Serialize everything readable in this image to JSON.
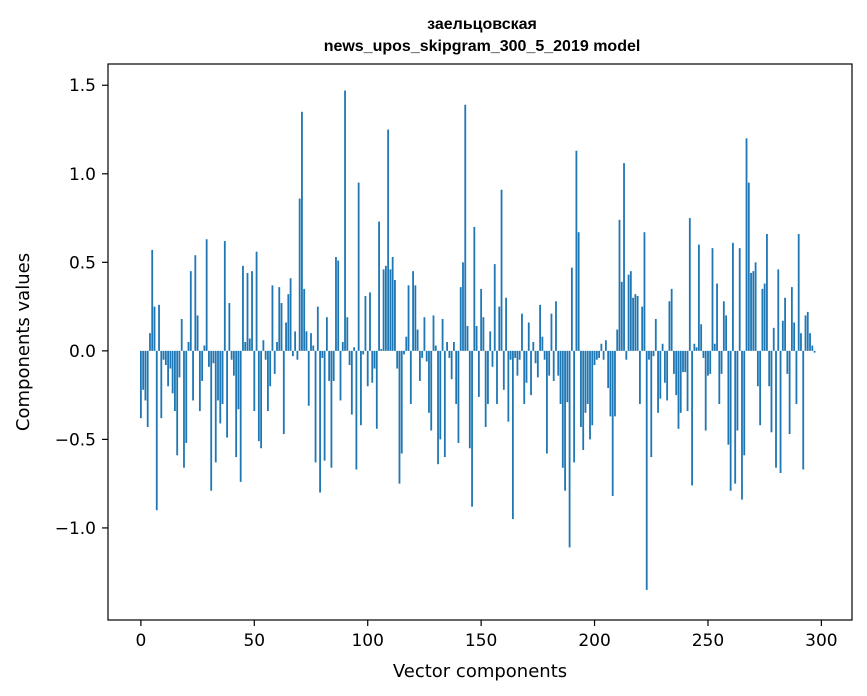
{
  "chart_data": {
    "type": "bar",
    "title_lines": [
      "заельцовская",
      "news_upos_skipgram_300_5_2019 model"
    ],
    "xlabel": "Vector components",
    "ylabel": "Components values",
    "xlim": [
      -14.5,
      313.5
    ],
    "ylim": [
      -1.52,
      1.62
    ],
    "xticks": [
      0,
      50,
      100,
      150,
      200,
      250,
      300
    ],
    "xtick_labels": [
      "0",
      "50",
      "100",
      "150",
      "200",
      "250",
      "300"
    ],
    "yticks": [
      -1.0,
      -0.5,
      0.0,
      0.5,
      1.0,
      1.5
    ],
    "ytick_labels": [
      "−1.0",
      "−0.5",
      "0.0",
      "0.5",
      "1.0",
      "1.5"
    ],
    "grid": false,
    "bar_color": "#1f77b4",
    "x_start": 0,
    "values": [
      -0.38,
      -0.22,
      -0.28,
      -0.43,
      0.1,
      0.57,
      0.25,
      -0.9,
      0.26,
      -0.38,
      -0.05,
      -0.08,
      -0.2,
      -0.1,
      -0.24,
      -0.34,
      -0.59,
      -0.15,
      0.18,
      -0.66,
      -0.52,
      0.05,
      0.45,
      -0.28,
      0.54,
      0.2,
      -0.34,
      -0.17,
      0.03,
      0.63,
      -0.09,
      -0.79,
      -0.07,
      -0.63,
      -0.28,
      -0.41,
      -0.3,
      0.62,
      -0.49,
      0.27,
      -0.05,
      -0.14,
      -0.6,
      -0.33,
      -0.74,
      0.48,
      0.05,
      0.44,
      0.07,
      0.45,
      -0.34,
      0.56,
      -0.51,
      -0.55,
      0.06,
      -0.05,
      -0.34,
      -0.2,
      0.37,
      -0.13,
      0.05,
      0.36,
      0.27,
      -0.47,
      0.16,
      0.32,
      0.41,
      -0.03,
      0.11,
      -0.05,
      0.86,
      1.35,
      0.35,
      0.11,
      -0.31,
      0.1,
      0.03,
      -0.63,
      0.25,
      -0.8,
      -0.04,
      -0.62,
      0.19,
      -0.17,
      -0.66,
      -0.17,
      0.53,
      0.51,
      -0.28,
      0.05,
      1.47,
      0.19,
      -0.08,
      -0.36,
      0.02,
      -0.67,
      0.95,
      -0.42,
      -0.02,
      0.31,
      -0.2,
      0.33,
      -0.18,
      -0.1,
      -0.44,
      0.73,
      0.01,
      0.46,
      0.48,
      1.25,
      0.46,
      0.53,
      0.4,
      -0.1,
      -0.75,
      -0.58,
      -0.02,
      0.08,
      0.37,
      -0.3,
      0.45,
      0.37,
      0.12,
      -0.17,
      -0.04,
      0.19,
      -0.06,
      -0.35,
      -0.45,
      0.2,
      0.03,
      -0.64,
      -0.5,
      0.18,
      -0.6,
      0.05,
      -0.04,
      -0.16,
      0.05,
      -0.3,
      -0.52,
      0.36,
      0.5,
      1.39,
      0.14,
      -0.55,
      -0.88,
      0.7,
      0.14,
      -0.26,
      0.35,
      0.19,
      -0.43,
      -0.3,
      0.11,
      -0.09,
      0.49,
      -0.3,
      0.25,
      0.91,
      -0.22,
      0.3,
      -0.4,
      -0.05,
      -0.95,
      -0.04,
      -0.14,
      -0.05,
      0.21,
      -0.3,
      -0.18,
      0.16,
      -0.25,
      0.05,
      -0.07,
      -0.15,
      0.26,
      0.08,
      -0.05,
      -0.58,
      -0.14,
      0.21,
      -0.17,
      0.28,
      -0.14,
      -0.3,
      -0.66,
      -0.79,
      -0.29,
      -1.11,
      0.47,
      -0.63,
      1.13,
      0.67,
      -0.43,
      -0.56,
      -0.35,
      -0.3,
      -0.5,
      -0.42,
      -0.08,
      -0.05,
      -0.04,
      0.04,
      -0.05,
      0.06,
      -0.21,
      -0.37,
      -0.82,
      -0.37,
      0.12,
      0.74,
      0.39,
      1.06,
      -0.05,
      0.43,
      0.45,
      0.3,
      0.32,
      0.31,
      -0.3,
      0.25,
      0.67,
      -1.35,
      -0.05,
      -0.6,
      -0.03,
      0.18,
      -0.35,
      -0.27,
      0.04,
      -0.18,
      -0.28,
      0.28,
      0.35,
      -0.13,
      -0.25,
      -0.44,
      -0.35,
      -0.12,
      -0.12,
      -0.34,
      0.75,
      -0.76,
      0.04,
      0.02,
      0.6,
      0.15,
      -0.04,
      -0.45,
      -0.14,
      -0.13,
      0.58,
      0.04,
      0.38,
      -0.3,
      -0.13,
      0.28,
      0.2,
      -0.53,
      -0.79,
      0.61,
      -0.75,
      -0.45,
      0.58,
      -0.84,
      -0.59,
      1.2,
      0.95,
      0.44,
      0.45,
      0.5,
      -0.2,
      -0.42,
      0.35,
      0.38,
      0.66,
      -0.2,
      -0.46,
      0.13,
      -0.66,
      0.46,
      -0.69,
      0.17,
      0.3,
      -0.13,
      -0.47,
      0.36,
      0.16,
      -0.3,
      0.66,
      0.1,
      -0.67,
      0.2,
      0.22,
      0.1,
      0.03,
      -0.01
    ]
  }
}
